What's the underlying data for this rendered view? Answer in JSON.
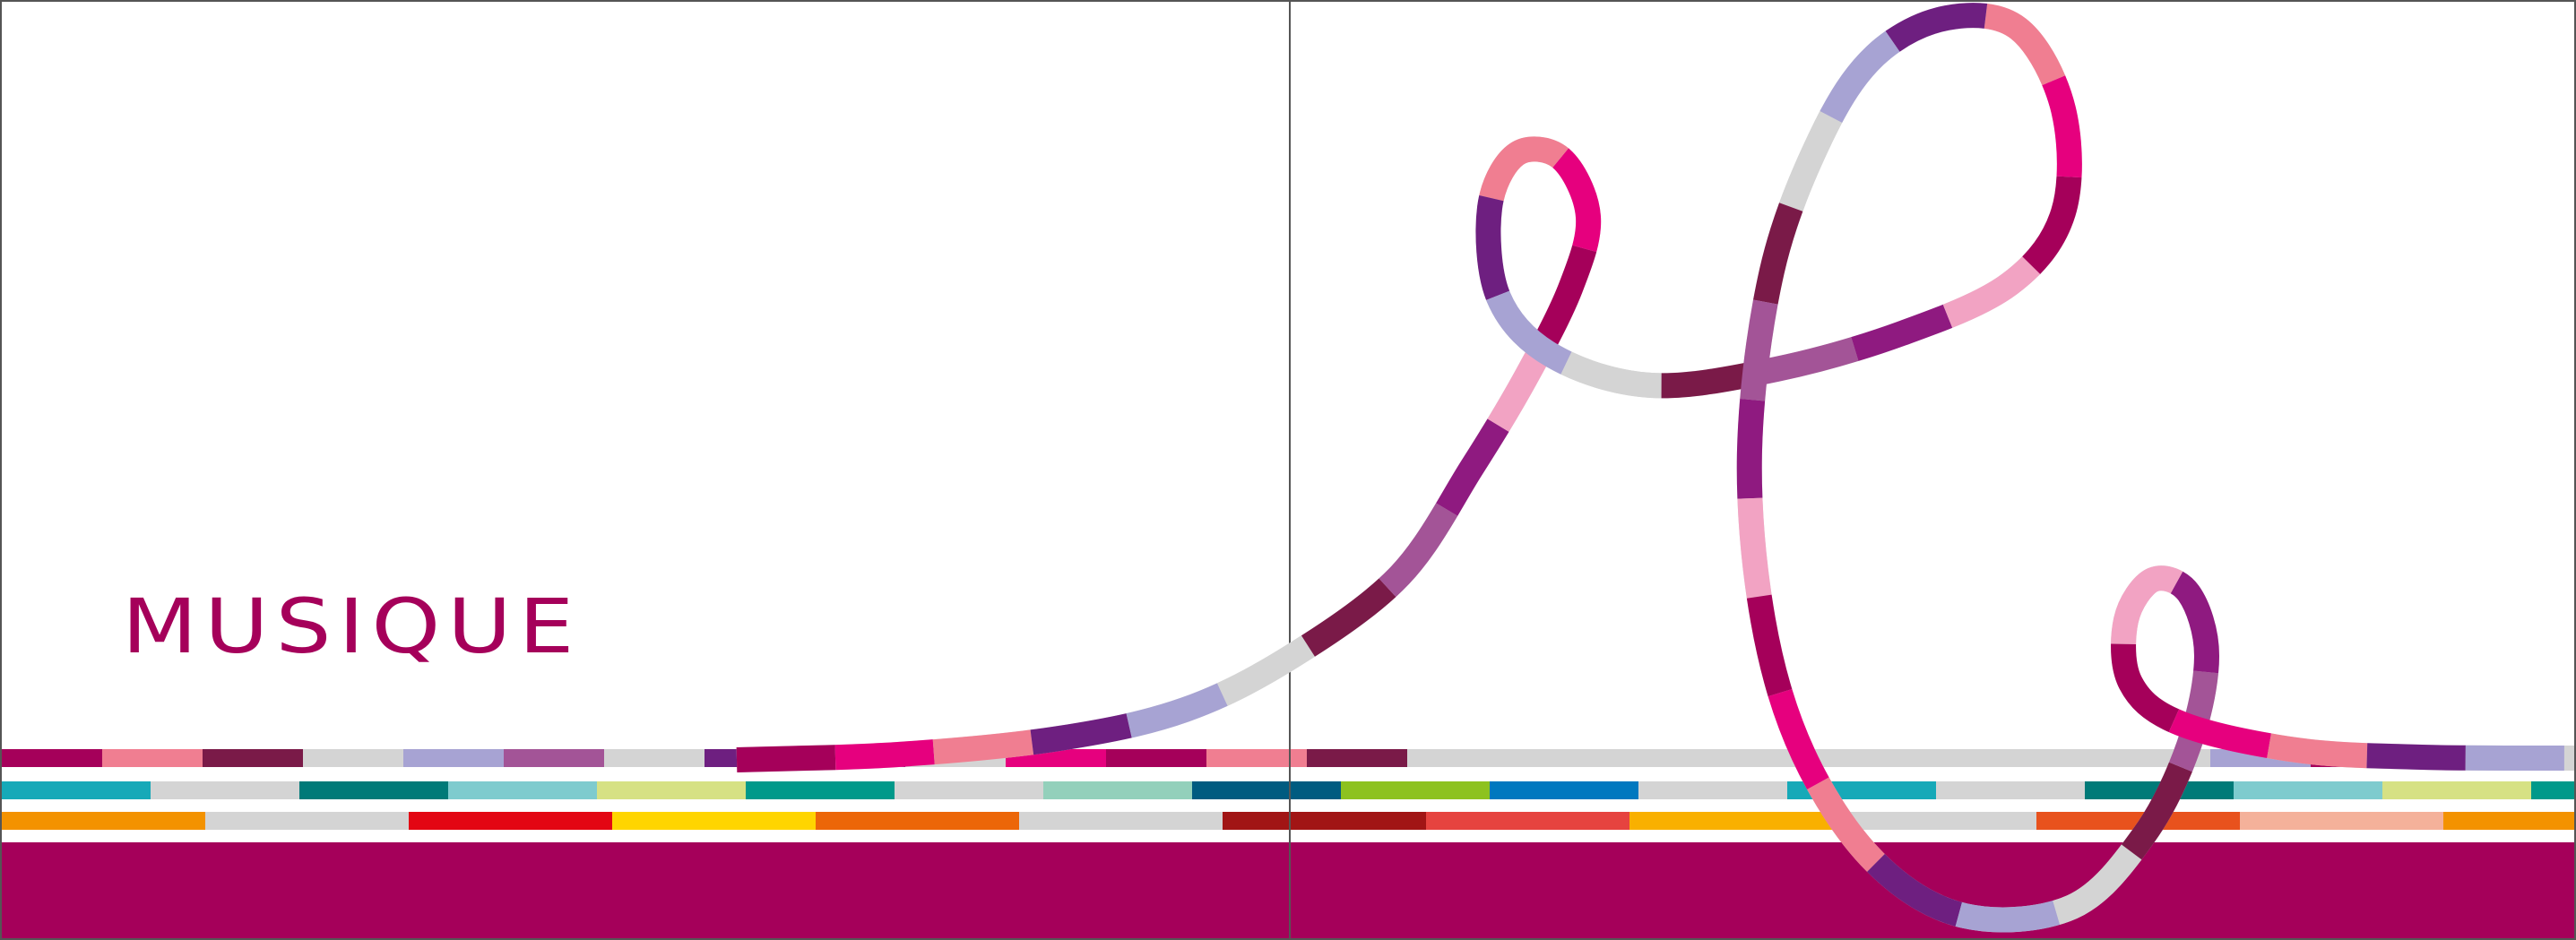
{
  "cover": {
    "title": "MUSIQUE",
    "colors": {
      "brand": "#a5005a",
      "background": "#ffffff",
      "fold_line": "#555555"
    }
  },
  "stripes": [
    {
      "name": "stripe-row-1",
      "colors": [
        "#a5005a",
        "#f07e91",
        "#7a1a48",
        "#d4d4d4",
        "#a7a3d3",
        "#a35497",
        "#d4d4d4",
        "#6e1f80",
        "#6e1f80",
        "#d4d4d4",
        "#e6007e",
        "#a5005a",
        "#f07e91",
        "#7a1a48",
        "#d4d4d4",
        "#d4d4d4",
        "#d4d4d4",
        "#d4d4d4",
        "#d4d4d4",
        "#d4d4d4",
        "#d4d4d4",
        "#d4d4d4",
        "#a7a3d3",
        "#a5005a",
        "#f07e91",
        "#a5005a"
      ]
    },
    {
      "name": "stripe-row-2",
      "colors": [
        "#16a9b8",
        "#d4d4d4",
        "#007a78",
        "#7ecbce",
        "#d6e184",
        "#00998a",
        "#d4d4d4",
        "#93d0bb",
        "#005b80",
        "#8dc21f",
        "#0078bf",
        "#d4d4d4",
        "#16a9b8",
        "#d4d4d4",
        "#007a78",
        "#7ecbce",
        "#d6e184",
        "#00998a"
      ]
    },
    {
      "name": "stripe-row-3",
      "colors": [
        "#f39200",
        "#d4d4d4",
        "#e30613",
        "#ffd500",
        "#ec6608",
        "#d4d4d4",
        "#a11515",
        "#e6433f",
        "#f9b000",
        "#d4d4d4",
        "#e8521d",
        "#f4b19a",
        "#f39200"
      ]
    }
  ],
  "ribbon": {
    "colors": [
      "#a5005a",
      "#e6007e",
      "#f07e91",
      "#6e1f80",
      "#a7a3d3",
      "#d4d4d4",
      "#7a1a48",
      "#a35497",
      "#8f1a80",
      "#f2a3c3"
    ]
  }
}
